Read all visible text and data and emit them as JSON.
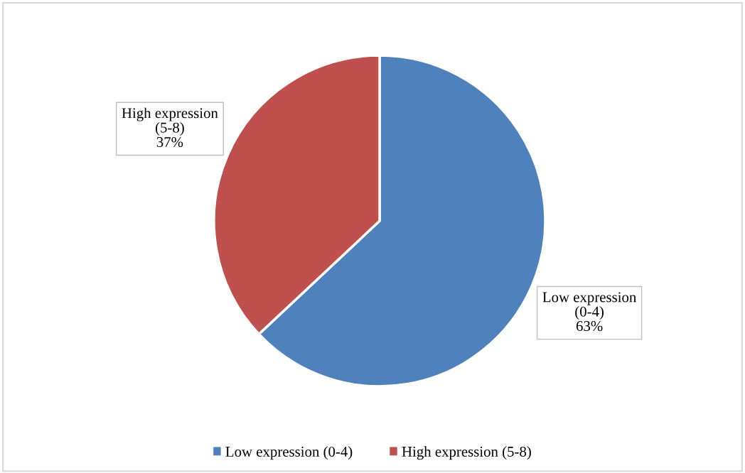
{
  "chart_data": {
    "type": "pie",
    "categories": [
      "Low expression (0-4)",
      "High expression (5-8)"
    ],
    "values": [
      63,
      37
    ],
    "colors": [
      "#4f81bd",
      "#c0504d"
    ],
    "value_labels": [
      "Low expression\n(0-4)\n63%",
      "High expression\n(5-8)\n37%"
    ],
    "legend": "bottom"
  }
}
